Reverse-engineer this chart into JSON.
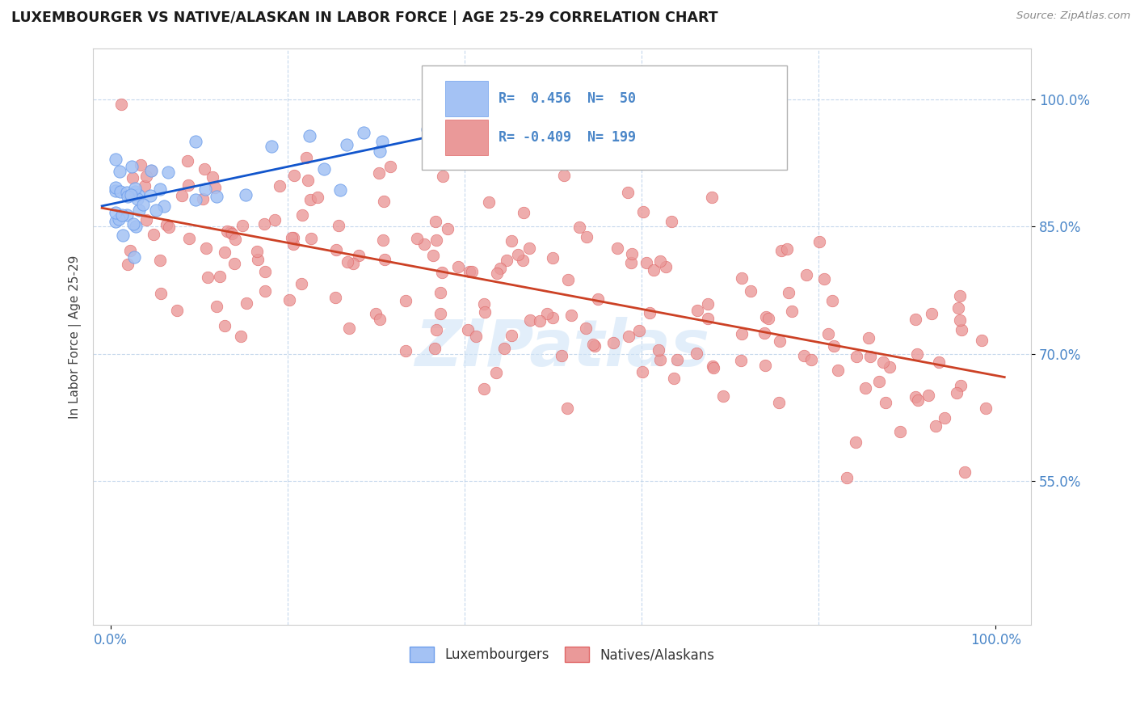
{
  "title": "LUXEMBOURGER VS NATIVE/ALASKAN IN LABOR FORCE | AGE 25-29 CORRELATION CHART",
  "source_text": "Source: ZipAtlas.com",
  "ylabel": "In Labor Force | Age 25-29",
  "xlim": [
    -0.02,
    1.04
  ],
  "ylim": [
    0.38,
    1.06
  ],
  "xtick_labels": [
    "0.0%",
    "100.0%"
  ],
  "ytick_labels": [
    "55.0%",
    "70.0%",
    "85.0%",
    "100.0%"
  ],
  "ytick_positions": [
    0.55,
    0.7,
    0.85,
    1.0
  ],
  "blue_scatter_color": "#a4c2f4",
  "blue_edge_color": "#6d9eeb",
  "pink_scatter_color": "#ea9999",
  "pink_edge_color": "#e06666",
  "blue_line_color": "#1155cc",
  "pink_line_color": "#cc4125",
  "grid_color": "#b8cfe8",
  "tick_color": "#4a86c8",
  "ylabel_color": "#444444",
  "title_color": "#1a1a1a",
  "source_color": "#888888",
  "watermark_color": "#d0e4f7",
  "background": "#ffffff",
  "legend_bg": "#ffffff",
  "legend_border": "#cccccc"
}
